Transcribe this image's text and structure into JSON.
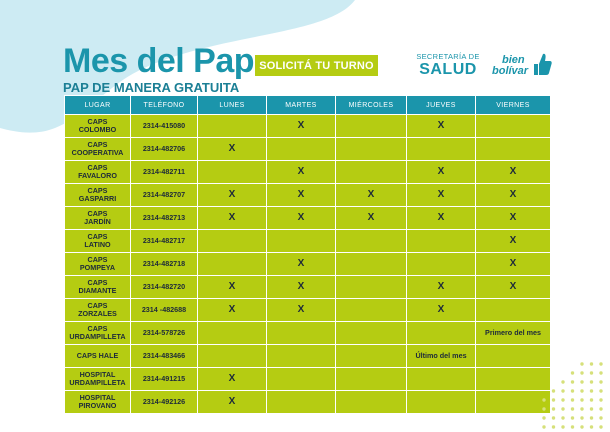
{
  "header": {
    "title": "Mes del Pap",
    "cta_label": "SOLICITÁ TU TURNO",
    "subtitle": "PAP DE MANERA GRATUITA"
  },
  "logos": {
    "secretaria": {
      "line": "SECRETARÍA DE",
      "name": "SALUD"
    },
    "bien_bolivar": {
      "line1": "bien",
      "line2": "bolívar"
    }
  },
  "table": {
    "headers": [
      "LUGAR",
      "TELÉFONO",
      "LUNES",
      "MARTES",
      "MIÉRCOLES",
      "JUEVES",
      "VIERNES"
    ],
    "rows": [
      {
        "lugar1": "CAPS",
        "lugar2": "COLOMBO",
        "tel": "2314-415080",
        "dias": [
          "",
          "X",
          "",
          "X",
          ""
        ]
      },
      {
        "lugar1": "CAPS",
        "lugar2": "COOPERATIVA",
        "tel": "2314-482706",
        "dias": [
          "X",
          "",
          "",
          "",
          ""
        ]
      },
      {
        "lugar1": "CAPS",
        "lugar2": "FAVALORO",
        "tel": "2314-482711",
        "dias": [
          "",
          "X",
          "",
          "X",
          "X"
        ]
      },
      {
        "lugar1": "CAPS",
        "lugar2": "GASPARRI",
        "tel": "2314-482707",
        "dias": [
          "X",
          "X",
          "X",
          "X",
          "X"
        ]
      },
      {
        "lugar1": "CAPS",
        "lugar2": "JARDÍN",
        "tel": "2314-482713",
        "dias": [
          "X",
          "X",
          "X",
          "X",
          "X"
        ]
      },
      {
        "lugar1": "CAPS",
        "lugar2": "LATINO",
        "tel": "2314-482717",
        "dias": [
          "",
          "",
          "",
          "",
          "X"
        ]
      },
      {
        "lugar1": "CAPS",
        "lugar2": "POMPEYA",
        "tel": "2314-482718",
        "dias": [
          "",
          "X",
          "",
          "",
          "X"
        ]
      },
      {
        "lugar1": "CAPS",
        "lugar2": "DIAMANTE",
        "tel": "2314-482720",
        "dias": [
          "X",
          "X",
          "",
          "X",
          "X"
        ]
      },
      {
        "lugar1": "CAPS",
        "lugar2": "ZORZALES",
        "tel": "2314 -482688",
        "dias": [
          "X",
          "X",
          "",
          "X",
          ""
        ]
      },
      {
        "lugar1": "CAPS",
        "lugar2": "URDAMPILLETA",
        "tel": "2314-578726",
        "dias": [
          "",
          "",
          "",
          "",
          "Primero del mes"
        ]
      },
      {
        "lugar1": "CAPS HALE",
        "lugar2": "",
        "tel": "2314-483466",
        "dias": [
          "",
          "",
          "",
          "Último del mes",
          ""
        ]
      },
      {
        "lugar1": "HOSPITAL",
        "lugar2": "URDAMPILLETA",
        "tel": "2314-491215",
        "dias": [
          "X",
          "",
          "",
          "",
          ""
        ]
      },
      {
        "lugar1": "HOSPITAL",
        "lugar2": "PIROVANO",
        "tel": "2314-492126",
        "dias": [
          "X",
          "",
          "",
          "",
          ""
        ]
      }
    ]
  },
  "colors": {
    "teal": "#1b95ab",
    "lime": "#b5cc12",
    "light_blue_blob": "#cdebf3",
    "dots": "#d6e07a"
  }
}
